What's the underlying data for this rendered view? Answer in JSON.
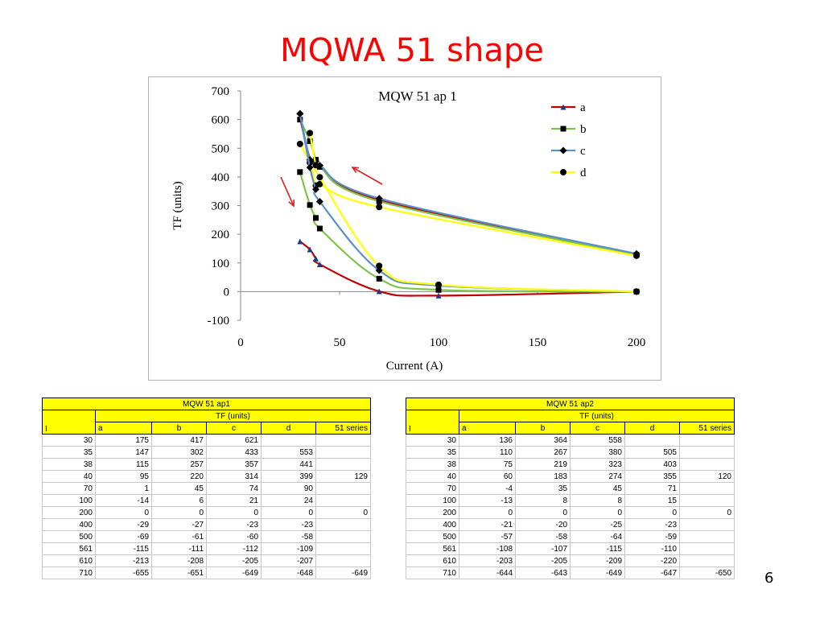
{
  "slide": {
    "title": "MQWA 51 shape",
    "page_number": "6"
  },
  "chart_data": {
    "type": "line",
    "title": "MQW 51 ap 1",
    "xlabel": "Current (A)",
    "ylabel": "TF (units)",
    "xlim": [
      0,
      200
    ],
    "ylim": [
      -100,
      700
    ],
    "x_ticks": [
      "0",
      "50",
      "100",
      "150",
      "200"
    ],
    "y_ticks": [
      "-100",
      "0",
      "100",
      "200",
      "300",
      "400",
      "500",
      "600",
      "700"
    ],
    "x": [
      30,
      35,
      38,
      40,
      70,
      100,
      200
    ],
    "legend_position": "top-right",
    "grid": false,
    "series": [
      {
        "name": "a",
        "color": "#c00000",
        "marker": "triangle",
        "values": [
          175,
          147,
          115,
          95,
          1,
          -14,
          0
        ]
      },
      {
        "name": "b",
        "color": "#7ec34a",
        "marker": "square",
        "values": [
          417,
          302,
          257,
          220,
          45,
          6,
          0
        ]
      },
      {
        "name": "c",
        "color": "#5b8fc7",
        "marker": "diamond",
        "values": [
          621,
          433,
          357,
          314,
          74,
          21,
          0
        ]
      },
      {
        "name": "d",
        "color": "#ffff00",
        "marker": "circle",
        "values": [
          null,
          553,
          441,
          399,
          90,
          24,
          0
        ]
      }
    ],
    "extra_series": [
      {
        "color": "#c00000",
        "marker": "triangle",
        "x": [
          30,
          35,
          38,
          40,
          70,
          200
        ],
        "values": [
          605,
          465,
          455,
          440,
          320,
          130
        ]
      },
      {
        "color": "#7ec34a",
        "marker": "square",
        "x": [
          30,
          35,
          38,
          40,
          70,
          200
        ],
        "values": [
          600,
          525,
          460,
          435,
          315,
          128
        ]
      },
      {
        "color": "#5b8fc7",
        "marker": "diamond",
        "x": [
          30,
          35,
          38,
          40,
          70,
          200
        ],
        "values": [
          620,
          460,
          455,
          440,
          325,
          132
        ]
      },
      {
        "color": "#ffff00",
        "marker": "circle",
        "x": [
          30,
          35,
          38,
          40,
          70,
          200
        ],
        "values": [
          515,
          450,
          370,
          375,
          295,
          125
        ]
      }
    ]
  },
  "tables": [
    {
      "title": "MQW 51 ap1",
      "group_header": "TF (units)",
      "columns": [
        "I",
        "a",
        "b",
        "c",
        "d",
        "51 series"
      ],
      "rows": [
        [
          "30",
          "175",
          "417",
          "621",
          "",
          ""
        ],
        [
          "35",
          "147",
          "302",
          "433",
          "553",
          ""
        ],
        [
          "38",
          "115",
          "257",
          "357",
          "441",
          ""
        ],
        [
          "40",
          "95",
          "220",
          "314",
          "399",
          "129"
        ],
        [
          "70",
          "1",
          "45",
          "74",
          "90",
          ""
        ],
        [
          "100",
          "-14",
          "6",
          "21",
          "24",
          ""
        ],
        [
          "200",
          "0",
          "0",
          "0",
          "0",
          "0"
        ],
        [
          "400",
          "-29",
          "-27",
          "-23",
          "-23",
          ""
        ],
        [
          "500",
          "-69",
          "-61",
          "-60",
          "-58",
          ""
        ],
        [
          "561",
          "-115",
          "-111",
          "-112",
          "-109",
          ""
        ],
        [
          "610",
          "-213",
          "-208",
          "-205",
          "-207",
          ""
        ],
        [
          "710",
          "-655",
          "-651",
          "-649",
          "-648",
          "-649"
        ]
      ]
    },
    {
      "title": "MQW 51 ap2",
      "group_header": "TF (units)",
      "columns": [
        "I",
        "a",
        "b",
        "c",
        "d",
        "51 series"
      ],
      "rows": [
        [
          "30",
          "136",
          "364",
          "558",
          "",
          ""
        ],
        [
          "35",
          "110",
          "267",
          "380",
          "505",
          ""
        ],
        [
          "38",
          "75",
          "219",
          "323",
          "403",
          ""
        ],
        [
          "40",
          "60",
          "183",
          "274",
          "355",
          "120"
        ],
        [
          "70",
          "-4",
          "35",
          "45",
          "71",
          ""
        ],
        [
          "100",
          "-13",
          "8",
          "8",
          "15",
          ""
        ],
        [
          "200",
          "0",
          "0",
          "0",
          "0",
          "0"
        ],
        [
          "400",
          "-21",
          "-20",
          "-25",
          "-23",
          ""
        ],
        [
          "500",
          "-57",
          "-58",
          "-64",
          "-59",
          ""
        ],
        [
          "561",
          "-108",
          "-107",
          "-115",
          "-110",
          ""
        ],
        [
          "610",
          "-203",
          "-205",
          "-209",
          "-220",
          ""
        ],
        [
          "710",
          "-644",
          "-643",
          "-649",
          "-647",
          "-650"
        ]
      ]
    }
  ]
}
